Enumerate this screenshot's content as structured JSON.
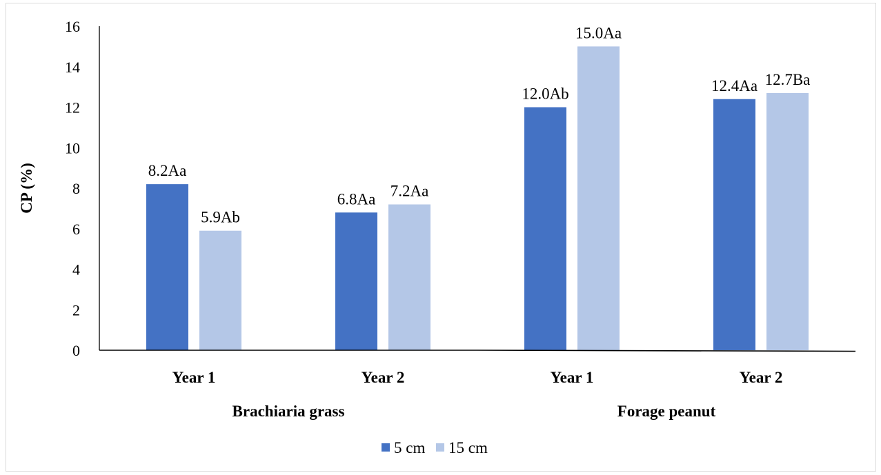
{
  "chart_data": {
    "type": "bar",
    "ylabel": "CP (%)",
    "ylim": [
      0,
      16
    ],
    "yticks": [
      "0",
      "2",
      "4",
      "6",
      "8",
      "10",
      "12",
      "14",
      "16"
    ],
    "grid": false,
    "legend_position": "bottom",
    "groups": [
      "Brachiaria grass",
      "Forage peanut"
    ],
    "categories": [
      "Year 1",
      "Year 2",
      "Year 1",
      "Year 2"
    ],
    "series": [
      {
        "name": "5 cm",
        "color": "#4472c4",
        "values": [
          8.2,
          6.8,
          12.0,
          12.4
        ],
        "labels": [
          "8.2Aa",
          "6.8Aa",
          "12.0Ab",
          "12.4Aa"
        ]
      },
      {
        "name": "15 cm",
        "color": "#b4c7e7",
        "values": [
          5.9,
          7.2,
          15.0,
          12.7
        ],
        "labels": [
          "5.9Ab",
          "7.2Aa",
          "15.0Aa",
          "12.7Ba"
        ]
      }
    ]
  }
}
